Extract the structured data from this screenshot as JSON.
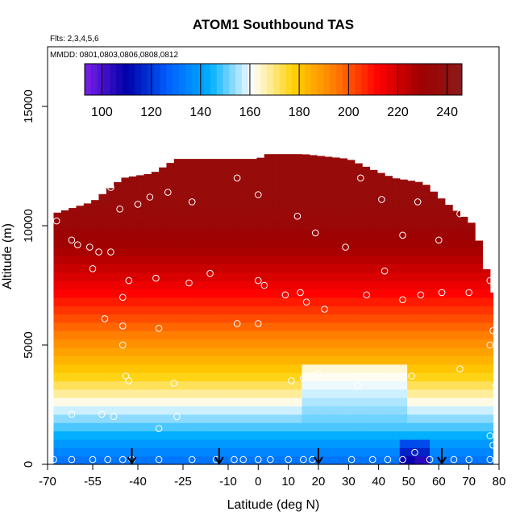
{
  "chart_data": {
    "type": "heatmap",
    "title": "ATOM1 Southbound TAS",
    "subtitle_flights": "Flts: 2,3,4,5,6",
    "subtitle_dates": "MMDD: 0801,0803,0806,0808,0812",
    "xlabel": "Latitude (deg N)",
    "ylabel": "Altitude (m)",
    "xlim": [
      -70,
      80
    ],
    "ylim": [
      0,
      17500
    ],
    "x_ticks": [
      -70,
      -55,
      -40,
      -25,
      -10,
      0,
      10,
      20,
      30,
      40,
      50,
      60,
      70,
      80
    ],
    "x_tick_labels": [
      "-70",
      "-55",
      "-40",
      "-25",
      "-10",
      "0",
      "10",
      "20",
      "30",
      "40",
      "50",
      "60",
      "70",
      "80"
    ],
    "y_ticks": [
      0,
      5000,
      10000,
      15000
    ],
    "y_tick_labels": [
      "0",
      "5000",
      "10000",
      "15000"
    ],
    "colorbar": {
      "range": [
        93,
        246
      ],
      "ticks": [
        100,
        120,
        140,
        160,
        180,
        200,
        220,
        240
      ],
      "tick_labels": [
        "100",
        "120",
        "140",
        "160",
        "180",
        "200",
        "220",
        "240"
      ],
      "colors": [
        "#7b1fe8",
        "#0000a8",
        "#0060ff",
        "#00b0ff",
        "#ffffff",
        "#ffd000",
        "#ff7a00",
        "#ff0000",
        "#a00000",
        "#8a1a1a"
      ]
    },
    "ceiling_profile": {
      "lat": [
        -68,
        -55,
        -50,
        -45,
        -35,
        -27,
        -15,
        0,
        3,
        15,
        30,
        37,
        45,
        55,
        62,
        67,
        72,
        75,
        78
      ],
      "alt": [
        10500,
        11000,
        11500,
        12000,
        12200,
        12800,
        12800,
        12800,
        13000,
        13000,
        12800,
        12400,
        12000,
        11800,
        11000,
        10500,
        10000,
        8500,
        7200
      ]
    },
    "layers": [
      {
        "alt": 0,
        "value": 130
      },
      {
        "alt": 800,
        "value": 138
      },
      {
        "alt": 1500,
        "value": 148
      },
      {
        "alt": 2300,
        "value": 158
      },
      {
        "alt": 3000,
        "value": 168
      },
      {
        "alt": 3800,
        "value": 178
      },
      {
        "alt": 4600,
        "value": 186
      },
      {
        "alt": 5400,
        "value": 194
      },
      {
        "alt": 6200,
        "value": 202
      },
      {
        "alt": 7000,
        "value": 210
      },
      {
        "alt": 8000,
        "value": 220
      },
      {
        "alt": 9000,
        "value": 228
      },
      {
        "alt": 10000,
        "value": 233
      },
      {
        "alt": 11000,
        "value": 236
      },
      {
        "alt": 13000,
        "value": 236
      }
    ],
    "low_speed_anomalies": [
      {
        "lat_min": 14,
        "lat_max": 50,
        "alt_min": 0,
        "alt_max": 4200,
        "value": 140
      },
      {
        "lat_min": 48,
        "lat_max": 58,
        "alt_min": 0,
        "alt_max": 1200,
        "value": 105
      },
      {
        "lat_min": 53,
        "lat_max": 58,
        "alt_min": 0,
        "alt_max": 500,
        "value": 96
      }
    ],
    "sample_points": [
      {
        "lat": -67,
        "alt": 10200
      },
      {
        "lat": -62,
        "alt": 9400
      },
      {
        "lat": -60,
        "alt": 9200
      },
      {
        "lat": -56,
        "alt": 9100
      },
      {
        "lat": -53,
        "alt": 8900
      },
      {
        "lat": -49,
        "alt": 8900
      },
      {
        "lat": -55,
        "alt": 8200
      },
      {
        "lat": -49,
        "alt": 11600
      },
      {
        "lat": -46,
        "alt": 10700
      },
      {
        "lat": -40,
        "alt": 10900
      },
      {
        "lat": -36,
        "alt": 11200
      },
      {
        "lat": -30,
        "alt": 11400
      },
      {
        "lat": -22,
        "alt": 11000
      },
      {
        "lat": -7,
        "alt": 12000
      },
      {
        "lat": 0,
        "alt": 11300
      },
      {
        "lat": 13,
        "alt": 10400
      },
      {
        "lat": 19,
        "alt": 9700
      },
      {
        "lat": 29,
        "alt": 9100
      },
      {
        "lat": 34,
        "alt": 12000
      },
      {
        "lat": 41,
        "alt": 11100
      },
      {
        "lat": 48,
        "alt": 9600
      },
      {
        "lat": 53,
        "alt": 11000
      },
      {
        "lat": 60,
        "alt": 9400
      },
      {
        "lat": 67,
        "alt": 10500
      },
      {
        "lat": 74,
        "alt": 10000
      },
      {
        "lat": 76,
        "alt": 9800
      },
      {
        "lat": -43,
        "alt": 7700
      },
      {
        "lat": -34,
        "alt": 7800
      },
      {
        "lat": -23,
        "alt": 7600
      },
      {
        "lat": -16,
        "alt": 8000
      },
      {
        "lat": 0,
        "alt": 7700
      },
      {
        "lat": 2,
        "alt": 7500
      },
      {
        "lat": 9,
        "alt": 7100
      },
      {
        "lat": 14,
        "alt": 7200
      },
      {
        "lat": 16,
        "alt": 6800
      },
      {
        "lat": 22,
        "alt": 6500
      },
      {
        "lat": 36,
        "alt": 7100
      },
      {
        "lat": 42,
        "alt": 8100
      },
      {
        "lat": 48,
        "alt": 6900
      },
      {
        "lat": 54,
        "alt": 7100
      },
      {
        "lat": 61,
        "alt": 7200
      },
      {
        "lat": 70,
        "alt": 7200
      },
      {
        "lat": 77,
        "alt": 7700
      },
      {
        "lat": -45,
        "alt": 7000
      },
      {
        "lat": -51,
        "alt": 6100
      },
      {
        "lat": -45,
        "alt": 5800
      },
      {
        "lat": -33,
        "alt": 5700
      },
      {
        "lat": -7,
        "alt": 5900
      },
      {
        "lat": 0,
        "alt": 5900
      },
      {
        "lat": 78,
        "alt": 5600
      },
      {
        "lat": 77,
        "alt": 5000
      },
      {
        "lat": -45,
        "alt": 5000
      },
      {
        "lat": -44,
        "alt": 3700
      },
      {
        "lat": -43,
        "alt": 3500
      },
      {
        "lat": -28,
        "alt": 3400
      },
      {
        "lat": 11,
        "alt": 3500
      },
      {
        "lat": 15,
        "alt": 3600
      },
      {
        "lat": 18,
        "alt": 3700
      },
      {
        "lat": 20,
        "alt": 3800
      },
      {
        "lat": 33,
        "alt": 3300
      },
      {
        "lat": 51,
        "alt": 3700
      },
      {
        "lat": 67,
        "alt": 4000
      },
      {
        "lat": 79,
        "alt": 3300
      },
      {
        "lat": -62,
        "alt": 2100
      },
      {
        "lat": -52,
        "alt": 2100
      },
      {
        "lat": -48,
        "alt": 2000
      },
      {
        "lat": -27,
        "alt": 2000
      },
      {
        "lat": -33,
        "alt": 1500
      },
      {
        "lat": 77,
        "alt": 1200
      },
      {
        "lat": 78,
        "alt": 800
      },
      {
        "lat": 52,
        "alt": 500
      },
      {
        "lat": -68,
        "alt": 200
      },
      {
        "lat": -62,
        "alt": 200
      },
      {
        "lat": -55,
        "alt": 200
      },
      {
        "lat": -50,
        "alt": 200
      },
      {
        "lat": -45,
        "alt": 200
      },
      {
        "lat": -42,
        "alt": 200
      },
      {
        "lat": -33,
        "alt": 200
      },
      {
        "lat": -22,
        "alt": 200
      },
      {
        "lat": -14,
        "alt": 200
      },
      {
        "lat": -8,
        "alt": 200
      },
      {
        "lat": -5,
        "alt": 200
      },
      {
        "lat": 0,
        "alt": 200
      },
      {
        "lat": 4,
        "alt": 200
      },
      {
        "lat": 10,
        "alt": 200
      },
      {
        "lat": 15,
        "alt": 200
      },
      {
        "lat": 18,
        "alt": 200
      },
      {
        "lat": 31,
        "alt": 200
      },
      {
        "lat": 38,
        "alt": 200
      },
      {
        "lat": 43,
        "alt": 200
      },
      {
        "lat": 48,
        "alt": 200
      },
      {
        "lat": 57,
        "alt": 200
      },
      {
        "lat": 65,
        "alt": 200
      },
      {
        "lat": 70,
        "alt": 200
      },
      {
        "lat": 77,
        "alt": 200
      }
    ],
    "arrows_lat": [
      -42,
      -13,
      20,
      61
    ],
    "grid": false,
    "legend_placement": "top-inside"
  }
}
